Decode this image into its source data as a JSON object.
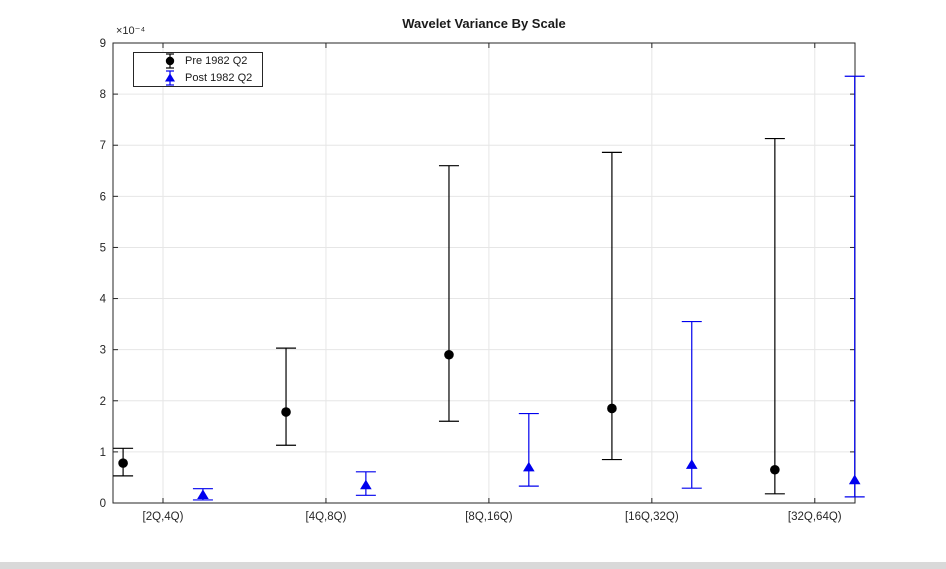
{
  "chart_data": {
    "type": "errorbar",
    "title": "Wavelet Variance By Scale",
    "y_scale_label": "×10⁻⁴",
    "categories": [
      "[2Q,4Q)",
      "[4Q,8Q)",
      "[8Q,16Q)",
      "[16Q,32Q)",
      "[32Q,64Q)"
    ],
    "yticks": [
      0,
      1,
      2,
      3,
      4,
      5,
      6,
      7,
      8,
      9
    ],
    "ylim": [
      0,
      9
    ],
    "grid": true,
    "legend_position": "top-left",
    "series": [
      {
        "name": "Pre 1982 Q2",
        "marker": "circle",
        "color": "#000000",
        "x_offset": -0.245,
        "values": [
          0.78,
          1.78,
          2.9,
          1.85,
          0.65
        ],
        "err_low": [
          0.53,
          1.13,
          1.6,
          0.85,
          0.18
        ],
        "err_high": [
          1.07,
          3.03,
          6.6,
          6.86,
          7.13
        ]
      },
      {
        "name": "Post 1982 Q2",
        "marker": "triangle",
        "color": "#0000EE",
        "x_offset": 0.245,
        "values": [
          0.16,
          0.35,
          0.7,
          0.75,
          0.45
        ],
        "err_low": [
          0.06,
          0.15,
          0.33,
          0.29,
          0.12
        ],
        "err_high": [
          0.28,
          0.61,
          1.75,
          3.55,
          8.35
        ]
      }
    ],
    "colors": {
      "grid": "#E6E6E6",
      "axis": "#262626",
      "tick_label": "#262626",
      "background": "#FFFFFF"
    }
  }
}
